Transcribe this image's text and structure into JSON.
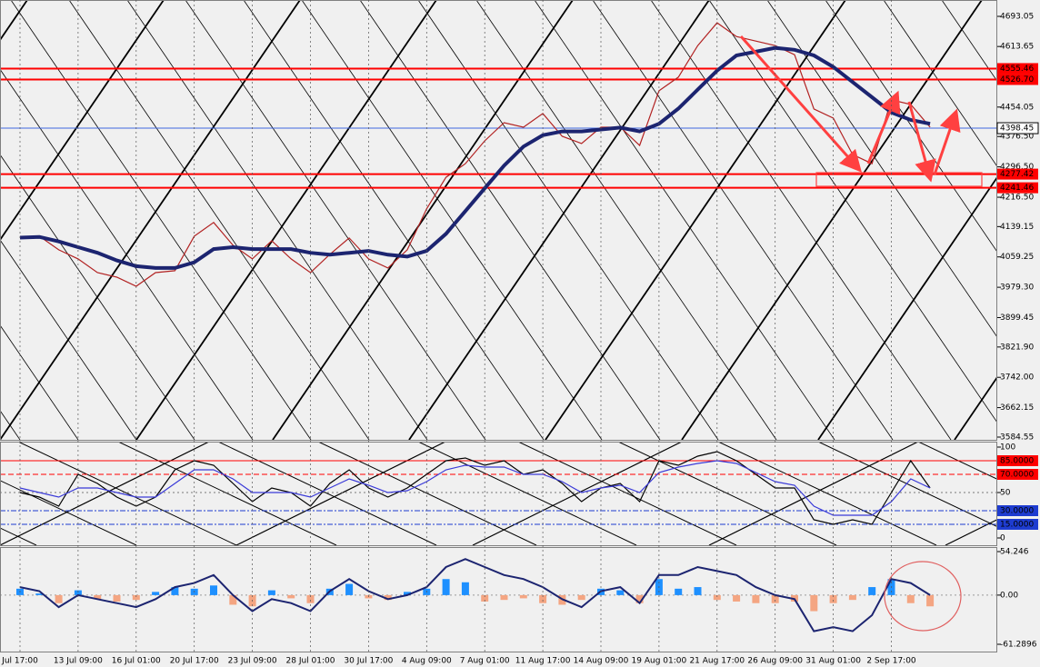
{
  "chart_data": [
    {
      "type": "line",
      "categories": [
        "Jul 17:00",
        null,
        null,
        "13 Jul 09:00",
        null,
        null,
        "16 Jul 01:00",
        null,
        null,
        "20 Jul 17:00",
        null,
        null,
        "23 Jul 09:00",
        null,
        null,
        "28 Jul 01:00",
        null,
        null,
        "30 Jul 17:00",
        null,
        null,
        "4 Aug 09:00",
        null,
        null,
        "7 Aug 01:00",
        null,
        null,
        "11 Aug 17:00",
        null,
        null,
        "14 Aug 09:00",
        null,
        null,
        "19 Aug 01:00",
        null,
        null,
        "21 Aug 17:00",
        null,
        null,
        "26 Aug 09:00",
        null,
        null,
        "31 Aug 01:00",
        null,
        null,
        "2 Sep 17:00",
        null,
        null
      ],
      "series": [
        {
          "color": "#b22222",
          "values": [
            4109,
            4114,
            4078,
            4054,
            4018,
            4006,
            3982,
            4018,
            4023,
            4114,
            4150,
            4090,
            4054,
            4102,
            4054,
            4018,
            4066,
            4109,
            4054,
            4030,
            4078,
            4186,
            4269,
            4305,
            4365,
            4413,
            4401,
            4437,
            4377,
            4358,
            4401,
            4401,
            4353,
            4497,
            4533,
            4616,
            4676,
            4640,
            4628,
            4616,
            4592,
            4449,
            4425,
            4329,
            4305,
            4473,
            4461,
            4401
          ]
        },
        {
          "color": "#1c2470",
          "values": [
            4110,
            4112,
            4100,
            4085,
            4070,
            4050,
            4035,
            4030,
            4030,
            4045,
            4080,
            4085,
            4080,
            4080,
            4080,
            4070,
            4065,
            4070,
            4075,
            4065,
            4060,
            4075,
            4120,
            4180,
            4240,
            4300,
            4350,
            4380,
            4390,
            4390,
            4395,
            4400,
            4390,
            4410,
            4450,
            4500,
            4550,
            4590,
            4600,
            4610,
            4605,
            4590,
            4560,
            4520,
            4480,
            4440,
            4420,
            4410
          ]
        }
      ],
      "ylim": [
        3577.35,
        4736.15
      ],
      "yticks": [
        {
          "value": 4693.05,
          "label": "4693.05"
        },
        {
          "value": 4613.65,
          "label": "4613.65"
        },
        {
          "value": 4454.05,
          "label": "4454.05"
        },
        {
          "value": 4376.5,
          "label": "4376.50"
        },
        {
          "value": 4296.5,
          "label": "4296.50"
        },
        {
          "value": 4216.5,
          "label": "4216.50"
        },
        {
          "value": 4139.15,
          "label": "4139.15"
        },
        {
          "value": 4059.25,
          "label": "4059.25"
        },
        {
          "value": 3979.3,
          "label": "3979.30"
        },
        {
          "value": 3899.45,
          "label": "3899.45"
        },
        {
          "value": 3821.9,
          "label": "3821.90"
        },
        {
          "value": 3742,
          "label": "3742.00"
        },
        {
          "value": 3662.15,
          "label": "3662.15"
        },
        {
          "value": 3584.55,
          "label": "3584.55"
        }
      ],
      "levels": [
        {
          "value": 4555.46,
          "label": "4555.46",
          "color": "#ff0000"
        },
        {
          "value": 4526.7,
          "label": "4526.70",
          "color": "#ff0000"
        },
        {
          "value": 4398.45,
          "label": "4398.45",
          "color": "#4169e1"
        },
        {
          "value": 4277.42,
          "label": "4277.42",
          "color": "#ff0000"
        },
        {
          "value": 4241.46,
          "label": "4241.46",
          "color": "#ff0000"
        }
      ]
    },
    {
      "type": "line",
      "series": [
        {
          "color": "#000000",
          "values": [
            50,
            45,
            35,
            70,
            60,
            45,
            35,
            45,
            75,
            85,
            80,
            60,
            40,
            55,
            50,
            35,
            60,
            75,
            55,
            45,
            55,
            70,
            85,
            88,
            80,
            85,
            70,
            75,
            60,
            40,
            55,
            60,
            40,
            85,
            80,
            90,
            95,
            85,
            70,
            55,
            55,
            20,
            15,
            20,
            15,
            50,
            85,
            55
          ]
        },
        {
          "color": "#3a3ad8",
          "values": [
            55,
            50,
            45,
            55,
            55,
            50,
            45,
            45,
            60,
            75,
            75,
            65,
            50,
            50,
            50,
            45,
            55,
            65,
            58,
            50,
            52,
            62,
            75,
            80,
            78,
            78,
            70,
            70,
            62,
            50,
            55,
            58,
            50,
            72,
            78,
            82,
            85,
            82,
            72,
            62,
            58,
            35,
            25,
            25,
            25,
            40,
            65,
            55
          ]
        }
      ],
      "ylim": [
        -8,
        106
      ],
      "yticks": [
        0,
        50,
        100
      ],
      "levels": [
        {
          "value": 85,
          "label": "85.0000",
          "color": "#ff0000"
        },
        {
          "value": 70,
          "label": "70.0000",
          "color": "#ff0000"
        },
        {
          "value": 30,
          "label": "30.0000",
          "color": "#1e3cd0"
        },
        {
          "value": 15,
          "label": "15.0000",
          "color": "#1e3cd0"
        }
      ]
    },
    {
      "type": "bar",
      "series": [
        {
          "type": "bar",
          "positive_color": "#1e90ff",
          "negative_color": "#f4a582",
          "values": [
            8,
            2,
            -10,
            6,
            -5,
            -8,
            -6,
            4,
            10,
            8,
            12,
            -12,
            -14,
            6,
            -4,
            -10,
            8,
            14,
            -4,
            -6,
            4,
            8,
            20,
            16,
            -8,
            -6,
            -4,
            -10,
            -12,
            -6,
            8,
            6,
            -10,
            20,
            8,
            10,
            -6,
            -8,
            -10,
            -10,
            -8,
            -20,
            -10,
            -6,
            10,
            20,
            -10,
            -14
          ]
        },
        {
          "type": "line",
          "color": "#1c2470",
          "values": [
            10,
            5,
            -15,
            0,
            -5,
            -10,
            -15,
            -5,
            10,
            15,
            25,
            0,
            -20,
            -5,
            -10,
            -20,
            5,
            20,
            5,
            -5,
            0,
            10,
            35,
            45,
            35,
            25,
            20,
            10,
            -5,
            -15,
            5,
            10,
            -10,
            25,
            25,
            35,
            30,
            25,
            10,
            0,
            -5,
            -45,
            -40,
            -45,
            -25,
            20,
            15,
            0
          ]
        }
      ],
      "ylim": [
        -70.35,
        59.91
      ],
      "yticks": [
        54.246,
        {
          "value": 0,
          "label": "0.00"
        },
        -61.2896
      ]
    }
  ]
}
